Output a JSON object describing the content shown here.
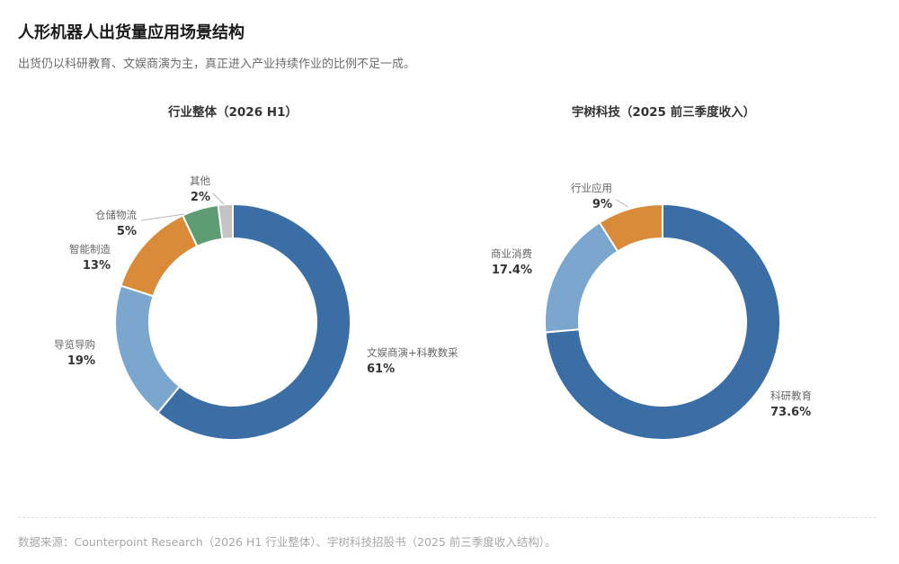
{
  "header": {
    "title": "人形机器人出货量应用场景结构",
    "subtitle": "出货仍以科研教育、文娱商演为主，真正进入产业持续作业的比例不足一成。"
  },
  "footer": {
    "source": "数据来源：Counterpoint Research（2026 H1 行业整体）、宇树科技招股书（2025 前三季度收入结构）。"
  },
  "chart_data": [
    {
      "type": "pie",
      "title": "行业整体（2026 H1）",
      "slices": [
        {
          "name": "文娱商演+科教数采",
          "value": 61,
          "label": "61%",
          "color": "#3b6ea5"
        },
        {
          "name": "导览导购",
          "value": 19,
          "label": "19%",
          "color": "#7ba7cf"
        },
        {
          "name": "智能制造",
          "value": 13,
          "label": "13%",
          "color": "#d98b3a"
        },
        {
          "name": "仓储物流",
          "value": 5,
          "label": "5%",
          "color": "#5f9b73"
        },
        {
          "name": "其他",
          "value": 2,
          "label": "2%",
          "color": "#c3c3c3"
        }
      ]
    },
    {
      "type": "pie",
      "title": "宇树科技（2025 前三季度收入）",
      "slices": [
        {
          "name": "科研教育",
          "value": 73.6,
          "label": "73.6%",
          "color": "#3b6ea5"
        },
        {
          "name": "商业消费",
          "value": 17.4,
          "label": "17.4%",
          "color": "#7ba7cf"
        },
        {
          "name": "行业应用",
          "value": 9,
          "label": "9%",
          "color": "#d98b3a"
        }
      ]
    }
  ]
}
